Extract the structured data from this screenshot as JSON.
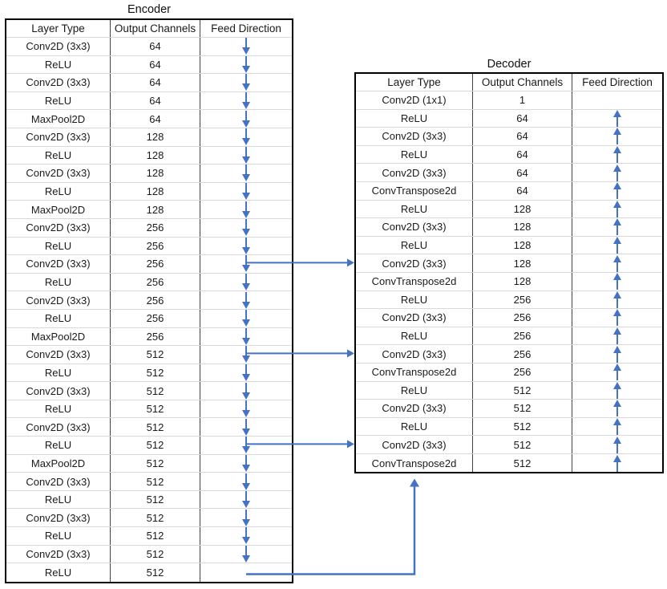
{
  "colors": {
    "arrow_blue": "#4472C4",
    "grid_line": "#d9d9d9",
    "table_border": "#000000"
  },
  "encoder": {
    "title": "Encoder",
    "columns": [
      "Layer Type",
      "Output Channels",
      "Feed Direction"
    ],
    "feed_direction": "down",
    "rows": [
      {
        "layer": "Conv2D (3x3)",
        "channels": "64",
        "arrow": true
      },
      {
        "layer": "ReLU",
        "channels": "64",
        "arrow": true
      },
      {
        "layer": "Conv2D (3x3)",
        "channels": "64",
        "arrow": true
      },
      {
        "layer": "ReLU",
        "channels": "64",
        "arrow": true
      },
      {
        "layer": "MaxPool2D",
        "channels": "64",
        "arrow": true
      },
      {
        "layer": "Conv2D (3x3)",
        "channels": "128",
        "arrow": true
      },
      {
        "layer": "ReLU",
        "channels": "128",
        "arrow": true
      },
      {
        "layer": "Conv2D (3x3)",
        "channels": "128",
        "arrow": true
      },
      {
        "layer": "ReLU",
        "channels": "128",
        "arrow": true
      },
      {
        "layer": "MaxPool2D",
        "channels": "128",
        "arrow": true
      },
      {
        "layer": "Conv2D (3x3)",
        "channels": "256",
        "arrow": true
      },
      {
        "layer": "ReLU",
        "channels": "256",
        "arrow": true
      },
      {
        "layer": "Conv2D (3x3)",
        "channels": "256",
        "arrow": true,
        "skip": "out"
      },
      {
        "layer": "ReLU",
        "channels": "256",
        "arrow": true
      },
      {
        "layer": "Conv2D (3x3)",
        "channels": "256",
        "arrow": true
      },
      {
        "layer": "ReLU",
        "channels": "256",
        "arrow": true
      },
      {
        "layer": "MaxPool2D",
        "channels": "256",
        "arrow": true
      },
      {
        "layer": "Conv2D (3x3)",
        "channels": "512",
        "arrow": true,
        "skip": "out"
      },
      {
        "layer": "ReLU",
        "channels": "512",
        "arrow": true
      },
      {
        "layer": "Conv2D (3x3)",
        "channels": "512",
        "arrow": true
      },
      {
        "layer": "ReLU",
        "channels": "512",
        "arrow": true
      },
      {
        "layer": "Conv2D (3x3)",
        "channels": "512",
        "arrow": true
      },
      {
        "layer": "ReLU",
        "channels": "512",
        "arrow": true,
        "skip": "out"
      },
      {
        "layer": "MaxPool2D",
        "channels": "512",
        "arrow": true
      },
      {
        "layer": "Conv2D (3x3)",
        "channels": "512",
        "arrow": true
      },
      {
        "layer": "ReLU",
        "channels": "512",
        "arrow": true
      },
      {
        "layer": "Conv2D (3x3)",
        "channels": "512",
        "arrow": true
      },
      {
        "layer": "ReLU",
        "channels": "512",
        "arrow": true
      },
      {
        "layer": "Conv2D (3x3)",
        "channels": "512",
        "arrow": true
      },
      {
        "layer": "ReLU",
        "channels": "512",
        "arrow": false,
        "skip": "bottom-out"
      }
    ]
  },
  "decoder": {
    "title": "Decoder",
    "columns": [
      "Layer Type",
      "Output Channels",
      "Feed Direction"
    ],
    "feed_direction": "up",
    "rows": [
      {
        "layer": "Conv2D (1x1)",
        "channels": "1",
        "arrow": false
      },
      {
        "layer": "ReLU",
        "channels": "64",
        "arrow": true
      },
      {
        "layer": "Conv2D (3x3)",
        "channels": "64",
        "arrow": true
      },
      {
        "layer": "ReLU",
        "channels": "64",
        "arrow": true
      },
      {
        "layer": "Conv2D (3x3)",
        "channels": "64",
        "arrow": true
      },
      {
        "layer": "ConvTranspose2d",
        "channels": "64",
        "arrow": true
      },
      {
        "layer": "ReLU",
        "channels": "128",
        "arrow": true
      },
      {
        "layer": "Conv2D (3x3)",
        "channels": "128",
        "arrow": true
      },
      {
        "layer": "ReLU",
        "channels": "128",
        "arrow": true
      },
      {
        "layer": "Conv2D (3x3)",
        "channels": "128",
        "arrow": true,
        "skip": "in"
      },
      {
        "layer": "ConvTranspose2d",
        "channels": "128",
        "arrow": true
      },
      {
        "layer": "ReLU",
        "channels": "256",
        "arrow": true
      },
      {
        "layer": "Conv2D (3x3)",
        "channels": "256",
        "arrow": true
      },
      {
        "layer": "ReLU",
        "channels": "256",
        "arrow": true
      },
      {
        "layer": "Conv2D (3x3)",
        "channels": "256",
        "arrow": true,
        "skip": "in"
      },
      {
        "layer": "ConvTranspose2d",
        "channels": "256",
        "arrow": true
      },
      {
        "layer": "ReLU",
        "channels": "512",
        "arrow": true
      },
      {
        "layer": "Conv2D (3x3)",
        "channels": "512",
        "arrow": true
      },
      {
        "layer": "ReLU",
        "channels": "512",
        "arrow": true
      },
      {
        "layer": "Conv2D (3x3)",
        "channels": "512",
        "arrow": true,
        "skip": "in"
      },
      {
        "layer": "ConvTranspose2d",
        "channels": "512",
        "arrow": true
      }
    ]
  },
  "connections": {
    "skips": [
      {
        "from_encoder_row": 12,
        "to_decoder_row": 9
      },
      {
        "from_encoder_row": 17,
        "to_decoder_row": 14
      },
      {
        "from_encoder_row": 22,
        "to_decoder_row": 19
      }
    ],
    "bottom": {
      "from_encoder_row": 29,
      "to": "decoder-bottom"
    }
  }
}
